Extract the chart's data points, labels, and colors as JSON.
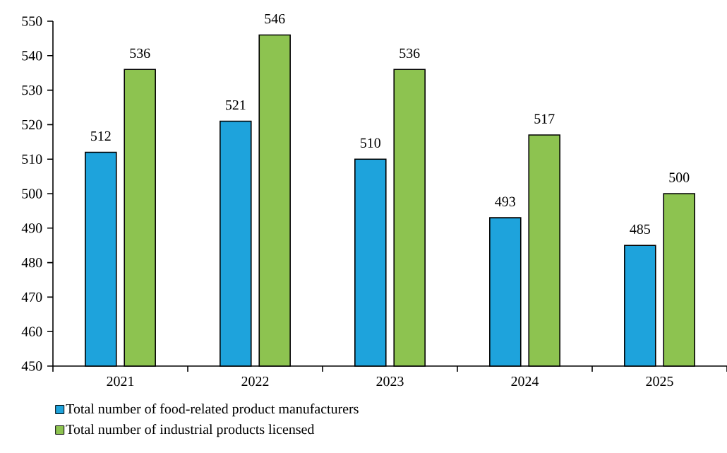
{
  "chart_data": {
    "type": "bar",
    "categories": [
      "2021",
      "2022",
      "2023",
      "2024",
      "2025"
    ],
    "series": [
      {
        "name": "Total number of food-related product manufacturers",
        "color": "#1ea3dc",
        "values": [
          512,
          521,
          510,
          493,
          485
        ]
      },
      {
        "name": "Total number of industrial products licensed",
        "color": "#8dc350",
        "values": [
          536,
          546,
          536,
          517,
          500
        ]
      }
    ],
    "ylim": [
      450,
      550
    ],
    "yticks": [
      450,
      460,
      470,
      480,
      490,
      500,
      510,
      520,
      530,
      540,
      550
    ],
    "data_labels": true,
    "grid": false,
    "legend": "bottom left"
  }
}
